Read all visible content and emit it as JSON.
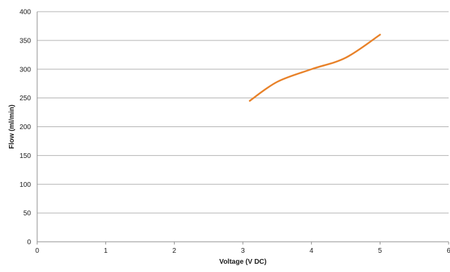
{
  "chart_data": {
    "type": "scatter",
    "title": "",
    "xlabel": "Voltage (V DC)",
    "ylabel": "Flow (ml/min)",
    "xlim": [
      0,
      6
    ],
    "ylim": [
      0,
      400
    ],
    "x_ticks": [
      "0",
      "1",
      "2",
      "3",
      "4",
      "5",
      "6"
    ],
    "y_ticks": [
      "0",
      "50",
      "100",
      "150",
      "200",
      "250",
      "300",
      "350",
      "400"
    ],
    "grid": "horizontal",
    "line_style": "smoothed lines, no markers",
    "series": [
      {
        "color": "#e8822a",
        "x": [
          3.1,
          3.5,
          4.0,
          4.5,
          5.0
        ],
        "y": [
          245,
          278,
          300,
          320,
          360
        ]
      }
    ]
  }
}
